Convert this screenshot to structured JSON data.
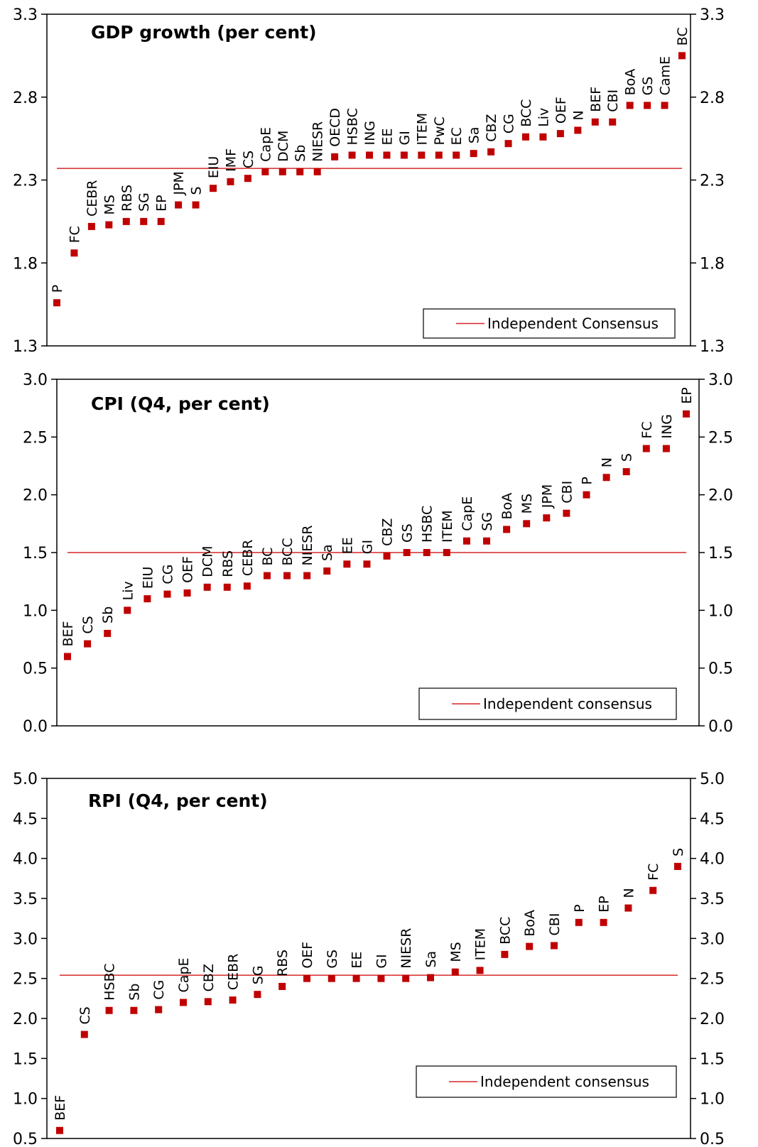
{
  "colors": {
    "marker": "#c00000",
    "consensus_line": "#d62728",
    "axis": "#000000"
  },
  "chart_data": [
    {
      "type": "scatter",
      "title": "GDP growth (per cent)",
      "ylim": [
        1.3,
        3.3
      ],
      "yticks": [
        "1.3",
        "1.8",
        "2.3",
        "2.8",
        "3.3"
      ],
      "legend": {
        "label": "Independent Consensus",
        "placement": "bottom-right"
      },
      "consensus": 2.37,
      "categories": [
        "P",
        "FC",
        "CEBR",
        "MS",
        "RBS",
        "SG",
        "EP",
        "JPM",
        "S",
        "EIU",
        "IMF",
        "CS",
        "CapE",
        "DCM",
        "Sb",
        "NIESR",
        "OECD",
        "HSBC",
        "ING",
        "EE",
        "GI",
        "ITEM",
        "PwC",
        "EC",
        "Sa",
        "CBZ",
        "CG",
        "BCC",
        "Liv",
        "OEF",
        "N",
        "BEF",
        "CBI",
        "BoA",
        "GS",
        "CamE",
        "BC"
      ],
      "values": [
        1.56,
        1.86,
        2.02,
        2.03,
        2.05,
        2.05,
        2.05,
        2.15,
        2.15,
        2.25,
        2.29,
        2.31,
        2.35,
        2.35,
        2.35,
        2.35,
        2.44,
        2.45,
        2.45,
        2.45,
        2.45,
        2.45,
        2.45,
        2.45,
        2.46,
        2.47,
        2.52,
        2.56,
        2.56,
        2.58,
        2.6,
        2.65,
        2.65,
        2.75,
        2.75,
        2.75,
        3.05
      ]
    },
    {
      "type": "scatter",
      "title": "CPI (Q4, per cent)",
      "ylim": [
        0.0,
        3.0
      ],
      "yticks": [
        "0.0",
        "0.5",
        "1.0",
        "1.5",
        "2.0",
        "2.5",
        "3.0"
      ],
      "legend": {
        "label": "Independent consensus",
        "placement": "bottom-right"
      },
      "consensus": 1.5,
      "categories": [
        "BEF",
        "CS",
        "Sb",
        "Liv",
        "EIU",
        "CG",
        "OEF",
        "DCM",
        "RBS",
        "CEBR",
        "BC",
        "BCC",
        "NIESR",
        "Sa",
        "EE",
        "GI",
        "CBZ",
        "GS",
        "HSBC",
        "ITEM",
        "CapE",
        "SG",
        "BoA",
        "MS",
        "JPM",
        "CBI",
        "P",
        "N",
        "S",
        "FC",
        "ING",
        "EP"
      ],
      "values": [
        0.6,
        0.71,
        0.8,
        1.0,
        1.1,
        1.14,
        1.15,
        1.2,
        1.2,
        1.21,
        1.3,
        1.3,
        1.3,
        1.34,
        1.4,
        1.4,
        1.47,
        1.5,
        1.5,
        1.5,
        1.6,
        1.6,
        1.7,
        1.75,
        1.8,
        1.84,
        2.0,
        2.15,
        2.2,
        2.4,
        2.4,
        2.7
      ]
    },
    {
      "type": "scatter",
      "title": "RPI (Q4, per cent)",
      "ylim": [
        0.5,
        5.0
      ],
      "yticks": [
        "0.5",
        "1.0",
        "1.5",
        "2.0",
        "2.5",
        "3.0",
        "3.5",
        "4.0",
        "4.5",
        "5.0"
      ],
      "legend": {
        "label": "Independent consensus",
        "placement": "bottom-right"
      },
      "consensus": 2.54,
      "categories": [
        "BEF",
        "CS",
        "HSBC",
        "Sb",
        "CG",
        "CapE",
        "CBZ",
        "CEBR",
        "SG",
        "RBS",
        "OEF",
        "GS",
        "EE",
        "GI",
        "NIESR",
        "Sa",
        "MS",
        "ITEM",
        "BCC",
        "BoA",
        "CBI",
        "P",
        "EP",
        "N",
        "FC",
        "S"
      ],
      "values": [
        0.6,
        1.8,
        2.1,
        2.1,
        2.11,
        2.2,
        2.21,
        2.23,
        2.3,
        2.4,
        2.5,
        2.5,
        2.5,
        2.5,
        2.5,
        2.51,
        2.58,
        2.6,
        2.8,
        2.9,
        2.91,
        3.2,
        3.2,
        3.38,
        3.6,
        3.9
      ]
    }
  ]
}
